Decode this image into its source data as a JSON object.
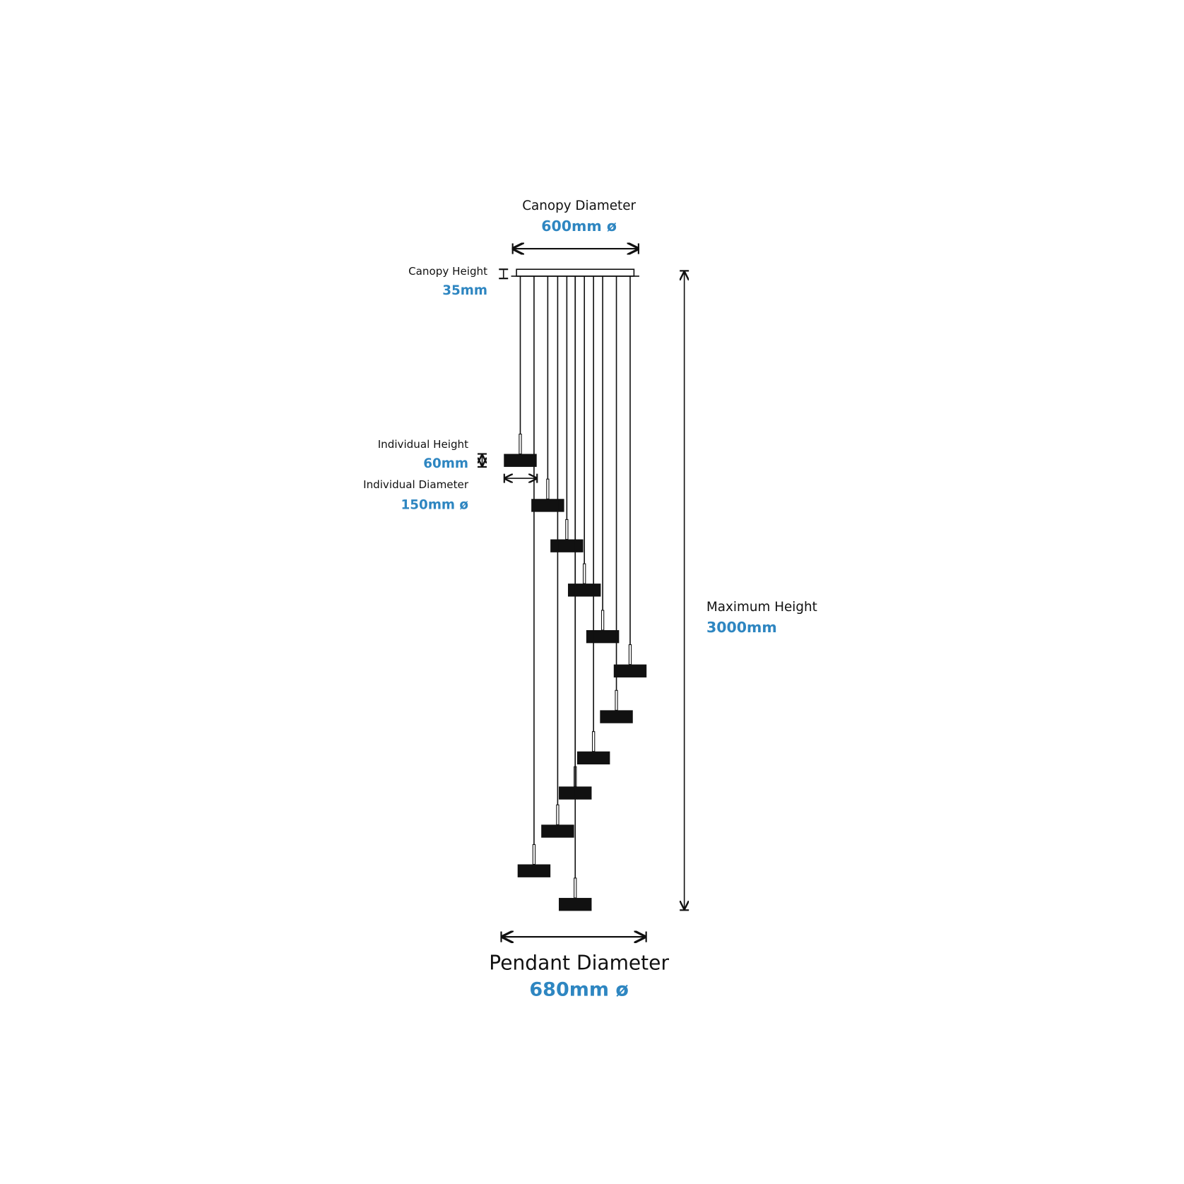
{
  "labels": {
    "canopy_diameter": {
      "title": "Canopy Diameter",
      "value": "600mm ø"
    },
    "canopy_height": {
      "title": "Canopy Height",
      "value": "35mm"
    },
    "individual_height": {
      "title": "Individual Height",
      "value": "60mm"
    },
    "individual_diameter": {
      "title": "Individual Diameter",
      "value": "150mm ø"
    },
    "maximum_height": {
      "title": "Maximum Height",
      "value": "3000mm"
    },
    "pendant_diameter": {
      "title": "Pendant Diameter",
      "value": "680mm ø"
    }
  },
  "colors": {
    "accent": "#2e86c1",
    "line": "#111111"
  },
  "pendant_count": 12
}
